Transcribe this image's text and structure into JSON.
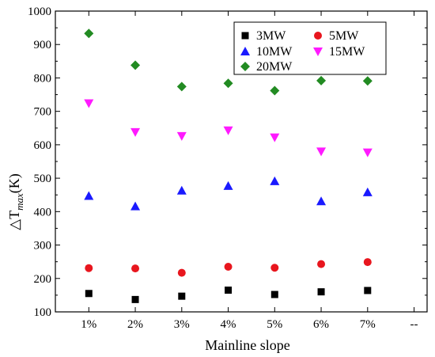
{
  "chart_data": {
    "type": "scatter",
    "title": "",
    "xlabel": "Mainline slope",
    "ylabel": "△T",
    "ylabel_subscript": "max",
    "ylabel_unit": "(K)",
    "categories": [
      "1%",
      "2%",
      "3%",
      "4%",
      "5%",
      "6%",
      "7%",
      "--"
    ],
    "ylim": [
      100,
      1000
    ],
    "yticks": [
      100,
      200,
      300,
      400,
      500,
      600,
      700,
      800,
      900,
      1000
    ],
    "grid": false,
    "legend_position": "top-right",
    "series": [
      {
        "name": "3MW",
        "marker": "square",
        "color": "#000000",
        "values": [
          155,
          137,
          147,
          165,
          152,
          160,
          164
        ]
      },
      {
        "name": "5MW",
        "marker": "circle",
        "color": "#e8161e",
        "values": [
          231,
          230,
          217,
          235,
          232,
          243,
          249
        ]
      },
      {
        "name": "10MW",
        "marker": "triangle-up",
        "color": "#1a1aff",
        "values": [
          447,
          416,
          463,
          477,
          491,
          431,
          458
        ]
      },
      {
        "name": "15MW",
        "marker": "triangle-down",
        "color": "#ff1aff",
        "values": [
          724,
          638,
          626,
          643,
          622,
          580,
          577
        ]
      },
      {
        "name": "20MW",
        "marker": "diamond",
        "color": "#228b22",
        "values": [
          933,
          838,
          774,
          784,
          762,
          792,
          791
        ]
      }
    ]
  }
}
